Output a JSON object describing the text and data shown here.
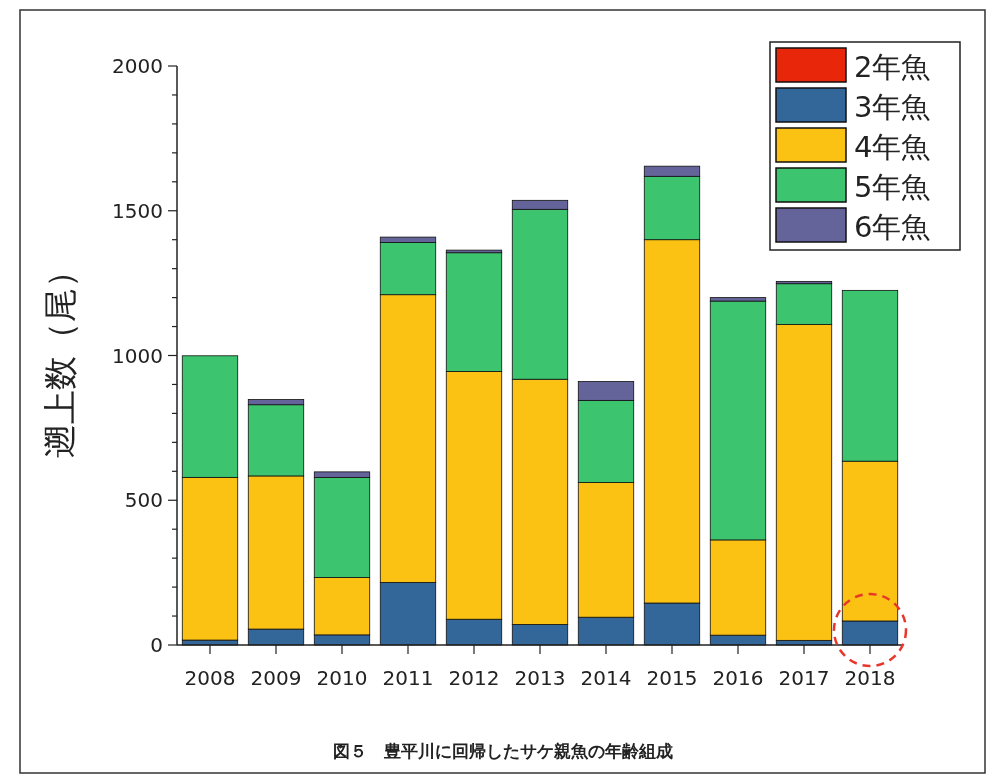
{
  "chart_data": {
    "type": "bar",
    "stacked": true,
    "ylabel": "遡上数（尾）",
    "annotations": [
      "図５　豊平川に回帰したサケ親魚の年齢組成"
    ],
    "categories": [
      "2008",
      "2009",
      "2010",
      "2011",
      "2012",
      "2013",
      "2014",
      "2015",
      "2016",
      "2017",
      "2018"
    ],
    "series": [
      {
        "name": "2年魚",
        "color": "#e8270a",
        "values": [
          0,
          null,
          0,
          0,
          0,
          0,
          0,
          0,
          null,
          0,
          0
        ]
      },
      {
        "name": "3年魚",
        "color": "#336699",
        "values": [
          17,
          55,
          35,
          216,
          89,
          71,
          96,
          145,
          34,
          16,
          83
        ]
      },
      {
        "name": "4年魚",
        "color": "#fbc213",
        "values": [
          562,
          529,
          198,
          994,
          856,
          847,
          465,
          1255,
          329,
          1091,
          552
        ]
      },
      {
        "name": "5年魚",
        "color": "#3cc46f",
        "values": [
          420,
          246,
          346,
          180,
          410,
          587,
          284,
          219,
          825,
          141,
          590
        ]
      },
      {
        "name": "6年魚",
        "color": "#65649a",
        "values": [
          0,
          18,
          19,
          19,
          9,
          31,
          65,
          35,
          12,
          8,
          0
        ]
      }
    ],
    "ylim": [
      0,
      2000
    ],
    "yticks": [
      0,
      {
        "value": 100,
        "label": null
      },
      {
        "value": 200,
        "label": null
      },
      {
        "value": 300,
        "label": null
      },
      {
        "value": 400,
        "label": null
      },
      500,
      {
        "value": 600,
        "label": null
      },
      {
        "value": 700,
        "label": null
      },
      {
        "value": 800,
        "label": null
      },
      {
        "value": 900,
        "label": null
      },
      1000,
      {
        "value": 1100,
        "label": null
      },
      {
        "value": 1200,
        "label": null
      },
      {
        "value": 1300,
        "label": null
      },
      {
        "value": 1400,
        "label": null
      },
      1500,
      {
        "value": 1600,
        "label": null
      },
      {
        "value": 1700,
        "label": null
      },
      {
        "value": 1800,
        "label": null
      },
      {
        "value": 1900,
        "label": null
      },
      2000
    ],
    "grid": false,
    "legend": "top right"
  }
}
